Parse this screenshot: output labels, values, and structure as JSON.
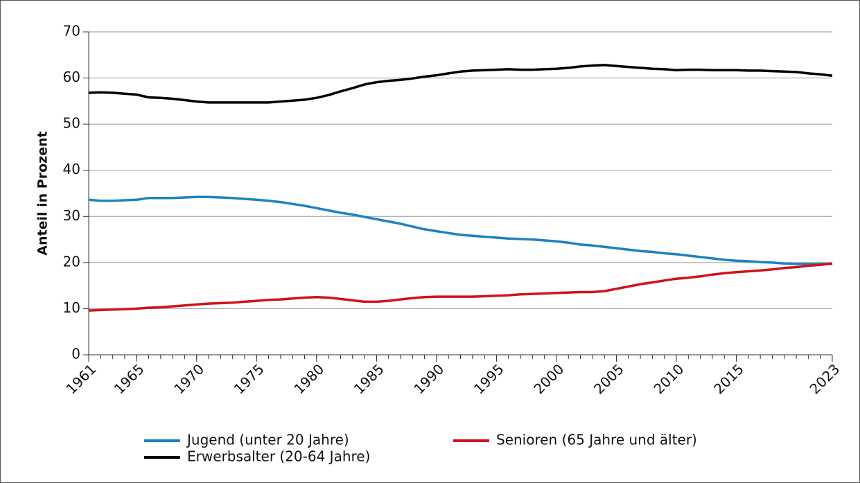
{
  "chart_data": {
    "type": "line",
    "y_label": "Anteil in Prozent",
    "x": [
      1961,
      1962,
      1963,
      1964,
      1965,
      1966,
      1967,
      1968,
      1969,
      1970,
      1971,
      1972,
      1973,
      1974,
      1975,
      1976,
      1977,
      1978,
      1979,
      1980,
      1981,
      1982,
      1983,
      1984,
      1985,
      1986,
      1987,
      1988,
      1989,
      1990,
      1991,
      1992,
      1993,
      1994,
      1995,
      1996,
      1997,
      1998,
      1999,
      2000,
      2001,
      2002,
      2003,
      2004,
      2005,
      2006,
      2007,
      2008,
      2009,
      2010,
      2011,
      2012,
      2013,
      2014,
      2015,
      2016,
      2017,
      2018,
      2019,
      2020,
      2021,
      2022,
      2023
    ],
    "series": [
      {
        "name": "Jugend (unter 20 Jahre)",
        "color": "#1f82c0",
        "values": [
          33.6,
          33.4,
          33.4,
          33.5,
          33.6,
          34.0,
          34.0,
          34.0,
          34.1,
          34.2,
          34.2,
          34.1,
          34.0,
          33.8,
          33.6,
          33.4,
          33.1,
          32.7,
          32.3,
          31.8,
          31.3,
          30.8,
          30.4,
          29.9,
          29.4,
          28.9,
          28.4,
          27.8,
          27.2,
          26.8,
          26.4,
          26.0,
          25.8,
          25.6,
          25.4,
          25.2,
          25.1,
          25.0,
          24.8,
          24.6,
          24.3,
          23.9,
          23.7,
          23.4,
          23.1,
          22.8,
          22.5,
          22.3,
          22.0,
          21.8,
          21.5,
          21.2,
          20.9,
          20.6,
          20.4,
          20.3,
          20.1,
          20.0,
          19.8,
          19.7,
          19.7,
          19.7,
          19.7
        ]
      },
      {
        "name": "Senioren (65 Jahre und älter)",
        "color": "#d0121b",
        "values": [
          9.6,
          9.7,
          9.8,
          9.9,
          10.0,
          10.2,
          10.3,
          10.5,
          10.7,
          10.9,
          11.1,
          11.2,
          11.3,
          11.5,
          11.7,
          11.9,
          12.0,
          12.2,
          12.4,
          12.5,
          12.4,
          12.1,
          11.8,
          11.5,
          11.5,
          11.7,
          12.0,
          12.3,
          12.5,
          12.6,
          12.6,
          12.6,
          12.6,
          12.7,
          12.8,
          12.9,
          13.1,
          13.2,
          13.3,
          13.4,
          13.5,
          13.6,
          13.6,
          13.8,
          14.3,
          14.8,
          15.3,
          15.7,
          16.1,
          16.5,
          16.7,
          17.0,
          17.4,
          17.7,
          17.9,
          18.1,
          18.3,
          18.5,
          18.8,
          19.0,
          19.3,
          19.5,
          19.8
        ]
      },
      {
        "name": "Erwerbsalter (20-64 Jahre)",
        "color": "#000000",
        "values": [
          56.8,
          56.9,
          56.8,
          56.6,
          56.4,
          55.8,
          55.7,
          55.5,
          55.2,
          54.9,
          54.7,
          54.7,
          54.7,
          54.7,
          54.7,
          54.7,
          54.9,
          55.1,
          55.3,
          55.7,
          56.3,
          57.1,
          57.8,
          58.6,
          59.1,
          59.4,
          59.6,
          59.9,
          60.3,
          60.6,
          61.0,
          61.4,
          61.6,
          61.7,
          61.8,
          61.9,
          61.8,
          61.8,
          61.9,
          62.0,
          62.2,
          62.5,
          62.7,
          62.8,
          62.6,
          62.4,
          62.2,
          62.0,
          61.9,
          61.7,
          61.8,
          61.8,
          61.7,
          61.7,
          61.7,
          61.6,
          61.6,
          61.5,
          61.4,
          61.3,
          61.0,
          60.8,
          60.5
        ]
      }
    ],
    "xlim": [
      1961,
      2023
    ],
    "xticks": [
      1961,
      1965,
      1970,
      1975,
      1980,
      1985,
      1990,
      1995,
      2000,
      2005,
      2010,
      2015,
      2023
    ],
    "ylim": [
      0,
      70
    ],
    "yticks": [
      0,
      10,
      20,
      30,
      40,
      50,
      60,
      70
    ],
    "grid": true
  }
}
